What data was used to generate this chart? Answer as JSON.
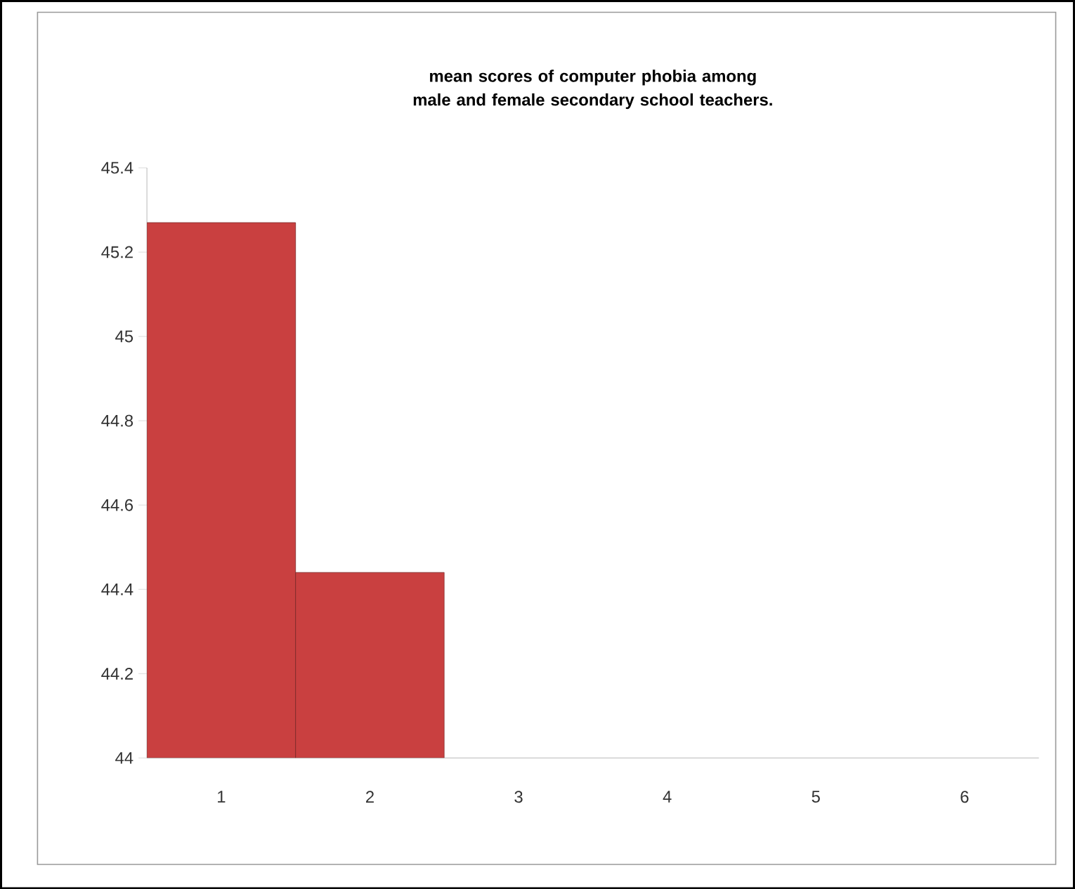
{
  "chart_data": {
    "type": "bar",
    "title": "mean scores of computer phobia among male and female secondary school teachers.",
    "categories": [
      "1",
      "2",
      "3",
      "4",
      "5",
      "6"
    ],
    "values": [
      45.27,
      44.44,
      null,
      null,
      null,
      null
    ],
    "color": "#c94040",
    "ylim": [
      44,
      45.4
    ],
    "yticks": [
      44,
      44.2,
      44.4,
      44.6,
      44.8,
      45,
      45.2,
      45.4
    ]
  }
}
